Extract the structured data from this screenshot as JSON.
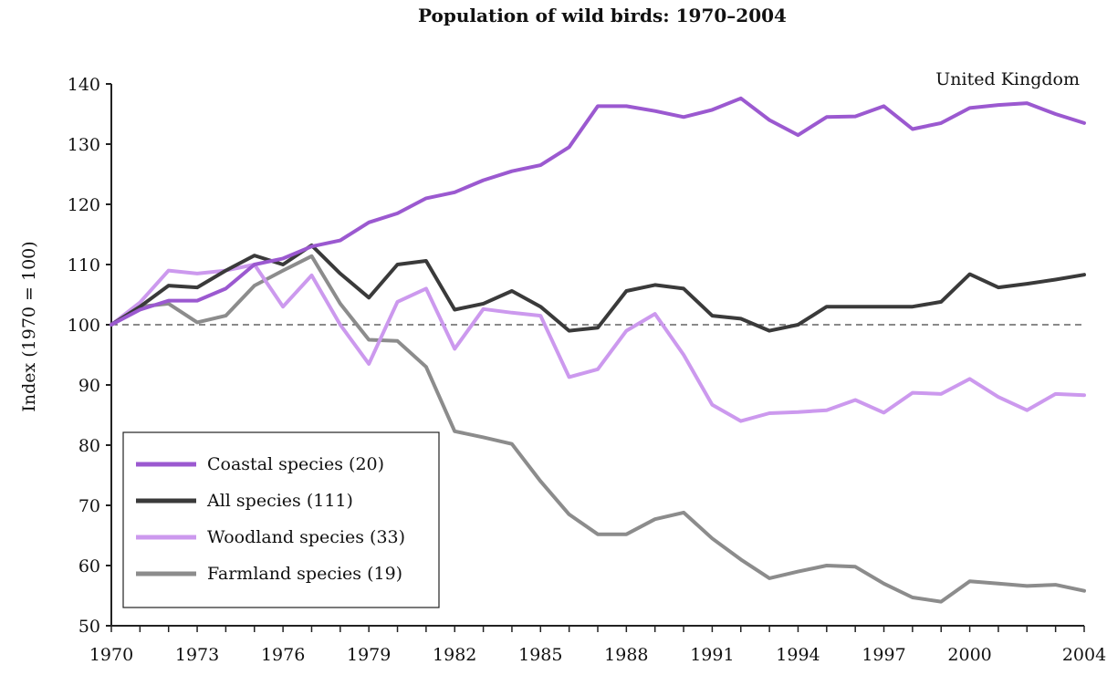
{
  "chart_data": {
    "type": "line",
    "title": "Population of wild birds: 1970–2004",
    "annotation": "United Kingdom",
    "xlabel": "",
    "ylabel": "Index (1970 = 100)",
    "xlim": [
      1970,
      2004
    ],
    "ylim": [
      50,
      140
    ],
    "x_ticks": [
      1970,
      1973,
      1976,
      1979,
      1982,
      1985,
      1988,
      1991,
      1994,
      1997,
      2000,
      2004
    ],
    "y_ticks": [
      50,
      60,
      70,
      80,
      90,
      100,
      110,
      120,
      130,
      140
    ],
    "reference_line": {
      "value": 100,
      "style": "dashed"
    },
    "legend_position": "bottom-left",
    "x": [
      1970,
      1971,
      1972,
      1973,
      1974,
      1975,
      1976,
      1977,
      1978,
      1979,
      1980,
      1981,
      1982,
      1983,
      1984,
      1985,
      1986,
      1987,
      1988,
      1989,
      1990,
      1991,
      1992,
      1993,
      1994,
      1995,
      1996,
      1997,
      1998,
      1999,
      2000,
      2001,
      2002,
      2003,
      2004
    ],
    "series": [
      {
        "name": "Coastal species (20)",
        "color": "#9b59d0",
        "values": [
          100,
          102.5,
          104,
          104,
          106,
          110,
          111,
          113,
          114,
          117,
          118.5,
          121,
          122,
          124,
          125.5,
          126.5,
          129.5,
          136.3,
          136.3,
          135.5,
          134.5,
          135.7,
          137.6,
          134,
          131.5,
          134.5,
          134.6,
          136.3,
          132.5,
          133.5,
          136,
          136.5,
          136.8,
          135,
          133.5
        ]
      },
      {
        "name": "All species (111)",
        "color": "#3a3a3a",
        "values": [
          100,
          103,
          106.5,
          106.2,
          109,
          111.5,
          110,
          113.2,
          108.5,
          104.5,
          110,
          110.6,
          102.5,
          103.5,
          105.6,
          103,
          99,
          99.5,
          105.6,
          106.6,
          106,
          101.5,
          101,
          99,
          100,
          103,
          103,
          103,
          103,
          103.8,
          108.4,
          106.2,
          106.8,
          107.5,
          108.3
        ]
      },
      {
        "name": "Woodland species (33)",
        "color": "#cc99ee",
        "values": [
          100,
          103.7,
          109,
          108.5,
          109,
          110,
          103,
          108.2,
          100,
          93.5,
          103.8,
          106,
          96,
          102.6,
          102,
          101.5,
          91.3,
          92.6,
          99,
          101.8,
          95,
          86.7,
          84,
          85.3,
          85.5,
          85.8,
          87.5,
          85.4,
          88.7,
          88.5,
          91,
          88,
          85.8,
          88.5,
          88.3
        ]
      },
      {
        "name": "Farmland species (19)",
        "color": "#8c8c8c",
        "values": [
          100,
          103,
          103.5,
          100.4,
          101.5,
          106.5,
          109,
          111.4,
          103.5,
          97.5,
          97.3,
          93,
          82.3,
          81.3,
          80.2,
          74,
          68.5,
          65.2,
          65.2,
          67.7,
          68.8,
          64.5,
          61,
          57.9,
          59,
          60,
          59.8,
          57,
          54.7,
          54,
          57.4,
          57,
          56.6,
          56.8,
          55.8
        ]
      }
    ]
  }
}
